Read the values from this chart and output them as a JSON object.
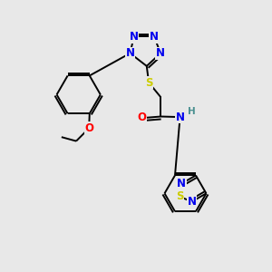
{
  "bg_color": "#e8e8e8",
  "atom_colors": {
    "N": "#0000ee",
    "S": "#cccc00",
    "O": "#ff0000",
    "C": "#000000",
    "H": "#4a9090"
  },
  "bond_color": "#000000",
  "font_size": 8.5,
  "fig_size": [
    3.0,
    3.0
  ],
  "dpi": 100
}
